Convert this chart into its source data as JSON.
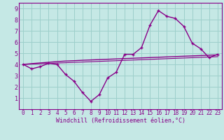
{
  "xlabel": "Windchill (Refroidissement éolien,°C)",
  "bg_color": "#c5e8e5",
  "line_color": "#880088",
  "grid_color": "#9dcfcb",
  "x_data": [
    0,
    1,
    2,
    3,
    4,
    5,
    6,
    7,
    8,
    9,
    10,
    11,
    12,
    13,
    14,
    15,
    16,
    17,
    18,
    19,
    20,
    21,
    22,
    23
  ],
  "y_curve1": [
    4.0,
    3.6,
    3.8,
    4.1,
    4.0,
    3.1,
    2.5,
    1.5,
    0.7,
    1.3,
    2.8,
    3.3,
    4.9,
    4.9,
    5.5,
    7.5,
    8.8,
    8.3,
    8.1,
    7.4,
    5.9,
    5.4,
    4.6,
    4.9
  ],
  "y_line1": [
    4.0,
    4.07,
    4.13,
    4.19,
    4.25,
    4.3,
    4.33,
    4.37,
    4.4,
    4.43,
    4.46,
    4.49,
    4.52,
    4.55,
    4.58,
    4.61,
    4.64,
    4.67,
    4.7,
    4.73,
    4.76,
    4.79,
    4.82,
    4.85
  ],
  "y_line2": [
    4.0,
    4.03,
    4.06,
    4.09,
    4.12,
    4.15,
    4.18,
    4.21,
    4.24,
    4.27,
    4.3,
    4.33,
    4.36,
    4.39,
    4.42,
    4.45,
    4.48,
    4.51,
    4.54,
    4.57,
    4.6,
    4.63,
    4.66,
    4.69
  ],
  "ylim": [
    0,
    9.5
  ],
  "xlim": [
    -0.5,
    23.5
  ],
  "yticks": [
    1,
    2,
    3,
    4,
    5,
    6,
    7,
    8,
    9
  ],
  "xticks": [
    0,
    1,
    2,
    3,
    4,
    5,
    6,
    7,
    8,
    9,
    10,
    11,
    12,
    13,
    14,
    15,
    16,
    17,
    18,
    19,
    20,
    21,
    22,
    23
  ],
  "figsize": [
    3.2,
    2.0
  ],
  "dpi": 100
}
